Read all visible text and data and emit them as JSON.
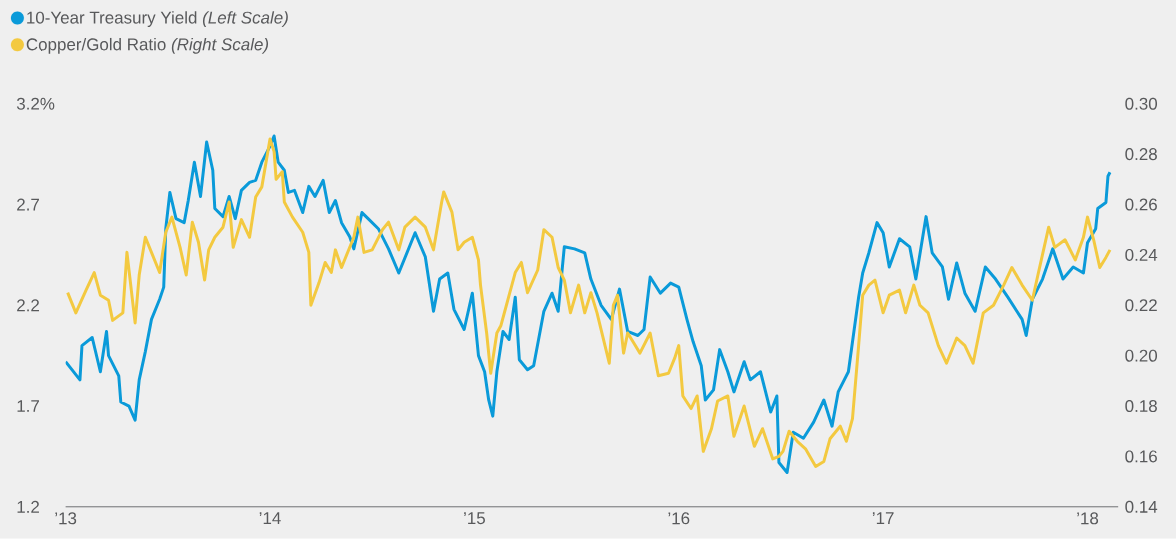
{
  "chart_data": {
    "type": "line",
    "legend": "top left",
    "xlim": [
      2013,
      2018.15
    ],
    "xticks": [
      {
        "value": 2013,
        "label": "’13"
      },
      {
        "value": 2014,
        "label": "’14"
      },
      {
        "value": 2015,
        "label": "’15"
      },
      {
        "value": 2016,
        "label": "’16"
      },
      {
        "value": 2017,
        "label": "’17"
      },
      {
        "value": 2018,
        "label": "’18"
      }
    ],
    "ylim": [
      1.2,
      3.2
    ],
    "yticks": [
      1.2,
      1.7,
      2.2,
      2.7,
      {
        "value": 3.2,
        "label": "3.2%"
      }
    ],
    "y2lim": [
      0.14,
      0.3
    ],
    "y2ticks": [
      0.14,
      0.16,
      0.18,
      {
        "value": 0.2,
        "label": "0.20"
      },
      0.22,
      0.24,
      0.26,
      0.28,
      {
        "value": 0.3,
        "label": "0.30"
      }
    ],
    "series": [
      {
        "name": "10-Year Treasury Yield *(Left Scale)*",
        "color": "#0a9ad9",
        "x": [
          2013.0,
          2013.07,
          2013.08,
          2013.13,
          2013.17,
          2013.2,
          2013.21,
          2013.26,
          2013.27,
          2013.31,
          2013.34,
          2013.36,
          2013.39,
          2013.42,
          2013.46,
          2013.48,
          2013.49,
          2013.51,
          2013.54,
          2013.58,
          2013.6,
          2013.63,
          2013.66,
          2013.69,
          2013.72,
          2013.73,
          2013.77,
          2013.8,
          2013.83,
          2013.86,
          2013.9,
          2013.93,
          2013.96,
          2014.0,
          2014.02,
          2014.04,
          2014.07,
          2014.09,
          2014.12,
          2014.16,
          2014.19,
          2014.22,
          2014.26,
          2014.29,
          2014.32,
          2014.35,
          2014.39,
          2014.41,
          2014.45,
          2014.48,
          2014.53,
          2014.58,
          2014.63,
          2014.71,
          2014.76,
          2014.8,
          2014.83,
          2014.87,
          2014.9,
          2014.95,
          2014.99,
          2015.02,
          2015.05,
          2015.07,
          2015.09,
          2015.11,
          2015.14,
          2015.17,
          2015.2,
          2015.22,
          2015.26,
          2015.29,
          2015.34,
          2015.38,
          2015.41,
          2015.44,
          2015.49,
          2015.54,
          2015.57,
          2015.62,
          2015.67,
          2015.71,
          2015.75,
          2015.8,
          2015.83,
          2015.86,
          2015.91,
          2015.96,
          2016.0,
          2016.04,
          2016.07,
          2016.11,
          2016.13,
          2016.17,
          2016.2,
          2016.24,
          2016.27,
          2016.32,
          2016.35,
          2016.4,
          2016.45,
          2016.48,
          2016.49,
          2016.53,
          2016.56,
          2016.61,
          2016.66,
          2016.71,
          2016.75,
          2016.78,
          2016.83,
          2016.88,
          2016.9,
          2016.93,
          2016.97,
          2017.0,
          2017.03,
          2017.08,
          2017.13,
          2017.16,
          2017.21,
          2017.24,
          2017.29,
          2017.32,
          2017.36,
          2017.4,
          2017.45,
          2017.5,
          2017.55,
          2017.61,
          2017.68,
          2017.7,
          2017.73,
          2017.78,
          2017.83,
          2017.88,
          2017.93,
          2017.98,
          2018.0,
          2018.04,
          2018.05,
          2018.09,
          2018.1,
          2018.11
        ],
        "values": [
          1.92,
          1.83,
          2.0,
          2.04,
          1.87,
          2.07,
          1.95,
          1.85,
          1.72,
          1.7,
          1.63,
          1.83,
          1.97,
          2.13,
          2.23,
          2.29,
          2.58,
          2.76,
          2.63,
          2.61,
          2.72,
          2.91,
          2.74,
          3.01,
          2.87,
          2.68,
          2.64,
          2.74,
          2.63,
          2.77,
          2.81,
          2.82,
          2.91,
          2.99,
          3.04,
          2.91,
          2.87,
          2.76,
          2.77,
          2.66,
          2.79,
          2.74,
          2.82,
          2.66,
          2.72,
          2.61,
          2.54,
          2.48,
          2.66,
          2.63,
          2.58,
          2.48,
          2.36,
          2.56,
          2.44,
          2.17,
          2.33,
          2.36,
          2.18,
          2.08,
          2.26,
          1.95,
          1.87,
          1.73,
          1.65,
          1.87,
          2.07,
          2.03,
          2.24,
          1.93,
          1.88,
          1.9,
          2.17,
          2.26,
          2.17,
          2.49,
          2.48,
          2.46,
          2.33,
          2.2,
          2.13,
          2.28,
          2.07,
          2.05,
          2.08,
          2.34,
          2.26,
          2.31,
          2.29,
          2.13,
          2.02,
          1.9,
          1.73,
          1.78,
          1.98,
          1.87,
          1.77,
          1.92,
          1.83,
          1.87,
          1.67,
          1.75,
          1.42,
          1.37,
          1.57,
          1.54,
          1.62,
          1.73,
          1.6,
          1.77,
          1.87,
          2.24,
          2.36,
          2.46,
          2.61,
          2.56,
          2.39,
          2.53,
          2.49,
          2.33,
          2.64,
          2.46,
          2.39,
          2.23,
          2.41,
          2.26,
          2.17,
          2.39,
          2.33,
          2.24,
          2.13,
          2.05,
          2.23,
          2.33,
          2.48,
          2.33,
          2.39,
          2.36,
          2.51,
          2.58,
          2.68,
          2.71,
          2.84,
          2.86
        ]
      },
      {
        "name": "Copper/Gold Ratio *(Right Scale)*",
        "color": "#f3c940",
        "axis": "y2",
        "x": [
          2013.01,
          2013.05,
          2013.1,
          2013.14,
          2013.17,
          2013.21,
          2013.23,
          2013.28,
          2013.3,
          2013.34,
          2013.36,
          2013.39,
          2013.42,
          2013.46,
          2013.49,
          2013.52,
          2013.56,
          2013.59,
          2013.62,
          2013.65,
          2013.68,
          2013.7,
          2013.73,
          2013.77,
          2013.8,
          2013.82,
          2013.86,
          2013.9,
          2013.93,
          2013.96,
          2014.0,
          2014.02,
          2014.03,
          2014.06,
          2014.07,
          2014.11,
          2014.16,
          2014.19,
          2014.2,
          2014.24,
          2014.27,
          2014.3,
          2014.32,
          2014.35,
          2014.41,
          2014.43,
          2014.46,
          2014.5,
          2014.55,
          2014.58,
          2014.63,
          2014.66,
          2014.71,
          2014.76,
          2014.8,
          2014.84,
          2014.85,
          2014.89,
          2014.92,
          2014.95,
          2014.99,
          2015.02,
          2015.03,
          2015.06,
          2015.08,
          2015.11,
          2015.13,
          2015.17,
          2015.2,
          2015.23,
          2015.26,
          2015.31,
          2015.34,
          2015.38,
          2015.41,
          2015.44,
          2015.47,
          2015.51,
          2015.54,
          2015.57,
          2015.6,
          2015.63,
          2015.66,
          2015.68,
          2015.7,
          2015.73,
          2015.75,
          2015.78,
          2015.81,
          2015.86,
          2015.9,
          2015.95,
          2015.98,
          2016.0,
          2016.02,
          2016.06,
          2016.09,
          2016.12,
          2016.16,
          2016.19,
          2016.24,
          2016.27,
          2016.32,
          2016.37,
          2016.41,
          2016.46,
          2016.49,
          2016.51,
          2016.54,
          2016.58,
          2016.62,
          2016.67,
          2016.71,
          2016.74,
          2016.79,
          2016.82,
          2016.85,
          2016.88,
          2016.9,
          2016.93,
          2016.96,
          2017.0,
          2017.03,
          2017.08,
          2017.11,
          2017.15,
          2017.18,
          2017.22,
          2017.27,
          2017.31,
          2017.36,
          2017.4,
          2017.44,
          2017.49,
          2017.54,
          2017.59,
          2017.63,
          2017.68,
          2017.73,
          2017.76,
          2017.81,
          2017.84,
          2017.89,
          2017.94,
          2017.98,
          2018.0,
          2018.03,
          2018.06,
          2018.09,
          2018.11
        ],
        "values": [
          0.225,
          0.217,
          0.226,
          0.233,
          0.224,
          0.222,
          0.214,
          0.217,
          0.241,
          0.213,
          0.232,
          0.247,
          0.241,
          0.233,
          0.249,
          0.255,
          0.243,
          0.232,
          0.253,
          0.245,
          0.23,
          0.242,
          0.247,
          0.251,
          0.261,
          0.243,
          0.254,
          0.247,
          0.263,
          0.267,
          0.286,
          0.281,
          0.27,
          0.273,
          0.261,
          0.255,
          0.249,
          0.241,
          0.22,
          0.229,
          0.237,
          0.233,
          0.242,
          0.235,
          0.247,
          0.255,
          0.241,
          0.242,
          0.25,
          0.253,
          0.242,
          0.251,
          0.255,
          0.251,
          0.242,
          0.261,
          0.265,
          0.257,
          0.242,
          0.245,
          0.247,
          0.238,
          0.228,
          0.209,
          0.193,
          0.209,
          0.212,
          0.224,
          0.233,
          0.237,
          0.225,
          0.234,
          0.25,
          0.247,
          0.235,
          0.23,
          0.217,
          0.228,
          0.217,
          0.225,
          0.217,
          0.207,
          0.197,
          0.22,
          0.224,
          0.201,
          0.209,
          0.205,
          0.201,
          0.209,
          0.192,
          0.193,
          0.199,
          0.204,
          0.184,
          0.179,
          0.184,
          0.162,
          0.171,
          0.182,
          0.184,
          0.168,
          0.18,
          0.164,
          0.171,
          0.159,
          0.16,
          0.162,
          0.17,
          0.166,
          0.163,
          0.156,
          0.158,
          0.167,
          0.172,
          0.166,
          0.175,
          0.204,
          0.224,
          0.228,
          0.23,
          0.217,
          0.224,
          0.226,
          0.217,
          0.228,
          0.22,
          0.217,
          0.204,
          0.197,
          0.207,
          0.204,
          0.197,
          0.217,
          0.22,
          0.228,
          0.235,
          0.228,
          0.222,
          0.233,
          0.251,
          0.243,
          0.246,
          0.238,
          0.247,
          0.255,
          0.246,
          0.235,
          0.239,
          0.242
        ]
      }
    ]
  }
}
